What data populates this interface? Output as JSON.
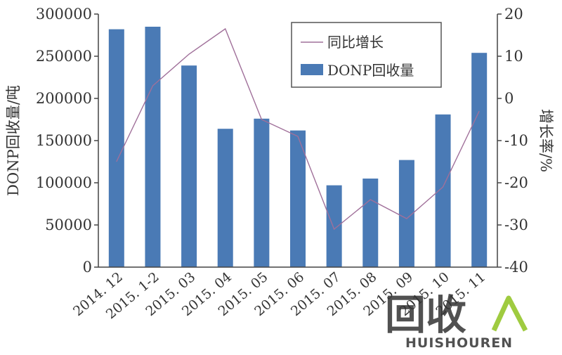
{
  "chart_data": {
    "type": "bar",
    "categories": [
      "2014. 12",
      "2015. 1-2",
      "2015. 03",
      "2015. 04",
      "2015. 05",
      "2015. 06",
      "2015. 07",
      "2015. 08",
      "2015. 09",
      "2015. 10",
      "2015. 11"
    ],
    "series": [
      {
        "name": "DONP回收量",
        "type": "bar",
        "axis": "left",
        "color": "#4a7ab5",
        "values": [
          282000,
          285000,
          239000,
          164000,
          176000,
          162000,
          97000,
          105000,
          127000,
          181000,
          254000
        ]
      },
      {
        "name": "同比增长",
        "type": "line",
        "axis": "right",
        "color": "#a0709a",
        "values": [
          -15,
          3,
          10.5,
          16.5,
          -5,
          -9,
          -31,
          -24,
          -28.5,
          -21,
          -3
        ]
      }
    ],
    "ylabel": "DONP回收量/吨",
    "ylabel_right": "增长率/%",
    "ylim": [
      0,
      300000
    ],
    "ylim_right": [
      -40,
      20
    ],
    "yticks": [
      "0",
      "50000",
      "100000",
      "150000",
      "200000",
      "250000",
      "300000"
    ],
    "yticks_right": [
      "-40",
      "-30",
      "-20",
      "-10",
      "0",
      "10",
      "20"
    ],
    "grid": false,
    "legend_position": "top-right"
  },
  "watermark": {
    "logo_text": "回收",
    "brand_text": "HUISHOUREN",
    "color": "#8fc31f"
  }
}
